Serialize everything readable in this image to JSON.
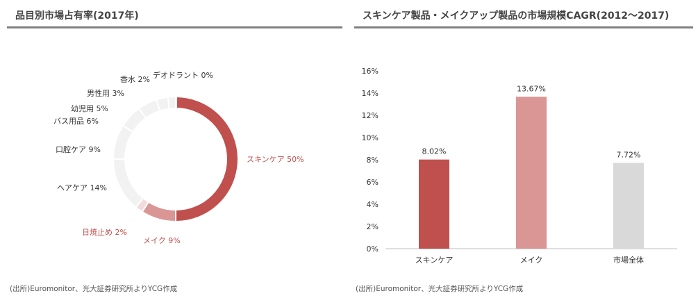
{
  "left": {
    "title": "品目別市場占有率(2017年)",
    "source": "(出所)Euromonitor、光大証券研究所よりYCG作成"
  },
  "right": {
    "title": "スキンケア製品・メイクアップ製品の市場規模CAGR(2012～2017)",
    "source": "(出所)Euromonitor、光大証券研究所よりYCG作成"
  },
  "chart_data": [
    {
      "type": "pie",
      "style": "donut",
      "title": "品目別市場占有率(2017年)",
      "slices": [
        {
          "label": "スキンケア",
          "value": 50,
          "display": "スキンケア 50%",
          "color": "#c0504d"
        },
        {
          "label": "メイク",
          "value": 9,
          "display": "メイク 9%",
          "color": "#d99694"
        },
        {
          "label": "日焼止め",
          "value": 2,
          "display": "日焼止め 2%",
          "color": "#f2dcdb"
        },
        {
          "label": "ヘアケア",
          "value": 14,
          "display": "ヘアケア 14%",
          "color": "#f2f2f2"
        },
        {
          "label": "口腔ケア",
          "value": 9,
          "display": "口腔ケア 9%",
          "color": "#f2f2f2"
        },
        {
          "label": "バス用品",
          "value": 6,
          "display": "バス用品 6%",
          "color": "#f2f2f2"
        },
        {
          "label": "幼児用",
          "value": 5,
          "display": "幼児用 5%",
          "color": "#f2f2f2"
        },
        {
          "label": "男性用",
          "value": 3,
          "display": "男性用 3%",
          "color": "#f2f2f2"
        },
        {
          "label": "香水",
          "value": 2,
          "display": "香水 2%",
          "color": "#f2f2f2"
        },
        {
          "label": "デオドラント",
          "value": 0,
          "display": "デオドラント 0%",
          "color": "#f2f2f2"
        }
      ],
      "highlight_label_color": "#c0504d"
    },
    {
      "type": "bar",
      "title": "スキンケア製品・メイクアップ製品の市場規模CAGR(2012～2017)",
      "categories": [
        "スキンケア",
        "メイク",
        "市場全体"
      ],
      "values": [
        8.02,
        13.67,
        7.72
      ],
      "value_labels": [
        "8.02%",
        "13.67%",
        "7.72%"
      ],
      "colors": [
        "#c0504d",
        "#d99694",
        "#d9d9d9"
      ],
      "ylim": [
        0,
        16
      ],
      "yticks": [
        "0%",
        "2%",
        "4%",
        "6%",
        "8%",
        "10%",
        "12%",
        "14%",
        "16%"
      ],
      "grid": false
    }
  ]
}
